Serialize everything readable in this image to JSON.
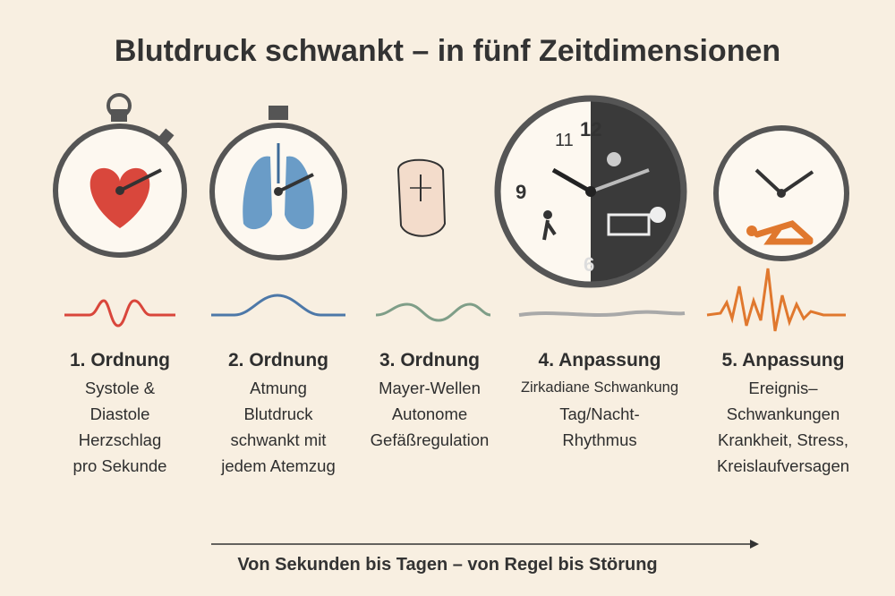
{
  "title": "Blutdruck schwankt – in fünf Zeitdimensionen",
  "clock_numbers": {
    "n11": "11",
    "n12": "12",
    "n9": "9",
    "n6": "6"
  },
  "columns": [
    {
      "heading": "1. Ordnung",
      "lines": [
        "Systole &",
        "Diastole",
        "Herzschlag",
        "pro Sekunde"
      ],
      "wave_color": "#d9463b",
      "icon": "stopwatch-heart-icon"
    },
    {
      "heading": "2. Ordnung",
      "lines": [
        "Atmung",
        "Blutdruck",
        "schwankt mit",
        "jedem Atemzug"
      ],
      "wave_color": "#4d78a8",
      "icon": "stopwatch-lungs-icon"
    },
    {
      "heading": "3. Ordnung",
      "lines": [
        "Mayer-Wellen",
        "Autonome",
        "Gefäßregulation"
      ],
      "wave_color": "#7f9e88",
      "icon": "head-icon"
    },
    {
      "heading": "4.  Anpassung",
      "lines": [
        "Zirkadiane Schwankung",
        "Tag/Nacht-",
        "Rhythmus"
      ],
      "wave_color": "#a9a9a9",
      "icon": "day-night-clock-icon"
    },
    {
      "heading": "5.  Anpassung",
      "lines": [
        "Ereignis–",
        "Schwankungen",
        "Krankheit, Stress,",
        "Kreislaufversagen"
      ],
      "wave_color": "#e0782e",
      "icon": "clock-collapse-icon"
    }
  ],
  "footer": "Von Sekunden bis Tagen – von Regel bis Störung"
}
